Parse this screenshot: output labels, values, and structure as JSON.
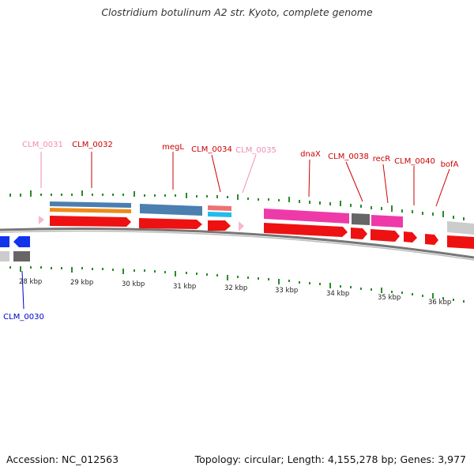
{
  "title": "Clostridium botulinum A2 str. Kyoto, complete genome",
  "accession": "Accession: NC_012563",
  "summary": "Topology: circular; Length: 4,155,278 bp; Genes: 3,977",
  "colors": {
    "label_red": "#cc0000",
    "label_pink": "#f08bb5",
    "label_blue": "#0000cc",
    "gene_red": "#ee1111",
    "gene_blue": "#4a7fb0",
    "gene_orange": "#ee8a1a",
    "gene_magenta": "#ee3aa8",
    "gene_salmon": "#f07070",
    "gene_cyan": "#22bbee",
    "gene_gray": "#666666",
    "tick_green": "#2a8a2a",
    "backbone": "#777777"
  },
  "gene_labels": [
    "CLM_0031",
    "CLM_0032",
    "megL",
    "CLM_0034",
    "CLM_0035",
    "dnaX",
    "CLM_0038",
    "recR",
    "CLM_0040",
    "bofA",
    "CLM_0030"
  ],
  "scale_labels": [
    "28 kbp",
    "29 kbp",
    "30 kbp",
    "31 kbp",
    "32 kbp",
    "33 kbp",
    "34 kbp",
    "35 kbp",
    "36 kbp"
  ]
}
